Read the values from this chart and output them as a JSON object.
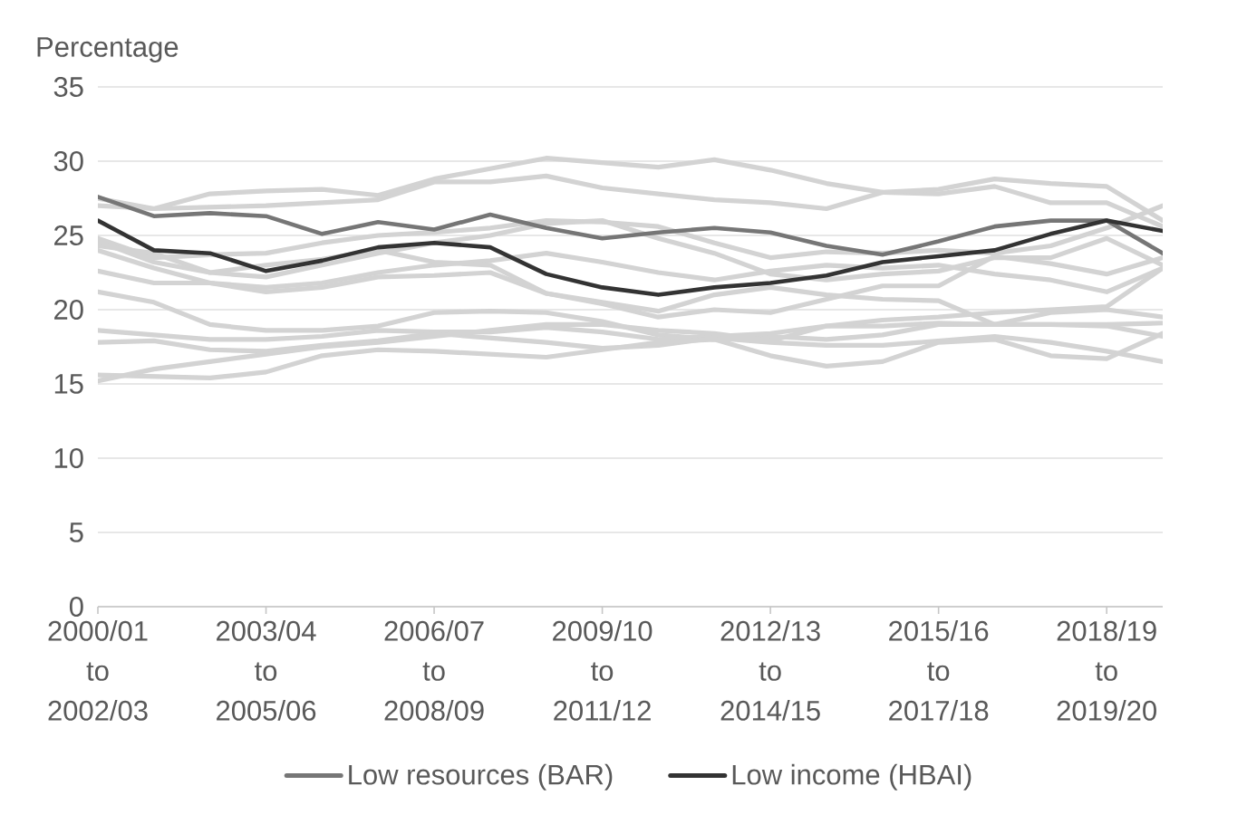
{
  "chart_data": {
    "type": "line",
    "ylabel": "Percentage",
    "categories": [
      "2000/01 to 2002/03",
      null,
      null,
      "2003/04 to 2005/06",
      null,
      null,
      "2006/07 to 2008/09",
      null,
      null,
      "2009/10 to 2011/12",
      null,
      null,
      "2012/13 to 2014/15",
      null,
      null,
      "2015/16 to 2017/18",
      null,
      null,
      "2018/19 to 2019/20",
      null
    ],
    "ylim": [
      0,
      35
    ],
    "yticks": [
      0,
      5,
      10,
      15,
      20,
      25,
      30,
      35
    ],
    "grid": "y",
    "legend": "bottom",
    "marker": "none",
    "line_style": "solid",
    "series": [
      {
        "color": "#d3d3d3",
        "values": [
          27.5,
          26.8,
          27.8,
          28.0,
          28.1,
          27.7,
          28.8,
          29.5,
          30.2,
          29.9,
          29.6,
          30.1,
          29.4,
          28.5,
          27.9,
          27.8,
          28.3,
          27.2,
          27.2,
          25.6
        ]
      },
      {
        "color": "#d3d3d3",
        "values": [
          27.0,
          26.8,
          26.9,
          27.0,
          27.2,
          27.4,
          28.6,
          28.6,
          29.0,
          28.2,
          27.8,
          27.4,
          27.2,
          26.8,
          27.9,
          28.1,
          28.8,
          28.5,
          28.3,
          26.0
        ]
      },
      {
        "color": "#d3d3d3",
        "values": [
          24.8,
          23.5,
          23.7,
          23.8,
          24.5,
          25.0,
          25.2,
          25.5,
          26.0,
          25.9,
          25.6,
          24.5,
          23.5,
          23.9,
          23.8,
          24.0,
          23.8,
          24.3,
          25.5,
          27.0
        ]
      },
      {
        "color": "#d3d3d3",
        "values": [
          24.3,
          23.8,
          22.5,
          22.2,
          23.0,
          23.8,
          24.5,
          25.0,
          25.8,
          26.0,
          24.8,
          23.8,
          22.4,
          22.0,
          22.4,
          22.6,
          23.5,
          23.5,
          24.8,
          23.0
        ]
      },
      {
        "color": "#d3d3d3",
        "values": [
          24.0,
          22.8,
          21.8,
          21.5,
          21.8,
          22.5,
          23.0,
          23.3,
          23.8,
          23.2,
          22.5,
          22.0,
          22.6,
          23.0,
          22.8,
          23.0,
          22.4,
          22.0,
          21.2,
          22.8
        ]
      },
      {
        "color": "#d3d3d3",
        "values": [
          22.6,
          21.8,
          21.8,
          21.2,
          21.5,
          22.2,
          22.3,
          22.5,
          21.1,
          20.4,
          19.5,
          20.0,
          19.8,
          20.7,
          21.6,
          21.6,
          23.6,
          23.1,
          22.4,
          23.5
        ]
      },
      {
        "color": "#d3d3d3",
        "values": [
          24.6,
          23.2,
          22.5,
          23.0,
          23.4,
          24.0,
          23.2,
          23.0,
          21.1,
          20.5,
          19.9,
          21.0,
          21.5,
          21.0,
          20.7,
          20.6,
          19.0,
          19.0,
          18.9,
          18.2
        ]
      },
      {
        "color": "#d3d3d3",
        "values": [
          21.2,
          20.5,
          19.0,
          18.6,
          18.6,
          18.9,
          19.8,
          19.9,
          19.8,
          19.2,
          18.3,
          18.0,
          18.2,
          18.0,
          18.3,
          19.0,
          19.0,
          19.8,
          20.0,
          19.5
        ]
      },
      {
        "color": "#d3d3d3",
        "values": [
          18.6,
          18.3,
          18.0,
          18.0,
          18.2,
          18.6,
          18.5,
          18.5,
          18.8,
          18.5,
          18.0,
          18.2,
          18.4,
          18.9,
          18.9,
          19.1,
          19.0,
          19.0,
          19.0,
          19.1
        ]
      },
      {
        "color": "#d3d3d3",
        "values": [
          17.8,
          17.9,
          17.3,
          17.2,
          17.6,
          17.9,
          18.4,
          18.1,
          17.8,
          17.4,
          17.6,
          18.1,
          17.8,
          17.6,
          17.6,
          17.9,
          18.2,
          17.8,
          17.2,
          16.5
        ]
      },
      {
        "color": "#d3d3d3",
        "values": [
          15.6,
          15.5,
          15.4,
          15.8,
          16.9,
          17.3,
          17.2,
          17.0,
          16.8,
          17.3,
          17.8,
          18.0,
          16.9,
          16.2,
          16.5,
          17.8,
          18.0,
          16.9,
          16.7,
          18.4
        ]
      },
      {
        "color": "#d3d3d3",
        "values": [
          15.2,
          16.0,
          16.5,
          17.0,
          17.5,
          17.8,
          18.2,
          18.6,
          19.0,
          19.0,
          18.6,
          18.4,
          17.9,
          18.9,
          19.3,
          19.5,
          19.8,
          20.0,
          20.2,
          22.8
        ]
      },
      {
        "name": "Low resources (BAR)",
        "color": "#767676",
        "values": [
          27.6,
          26.3,
          26.5,
          26.3,
          25.1,
          25.9,
          25.4,
          26.4,
          25.5,
          24.8,
          25.2,
          25.5,
          25.2,
          24.3,
          23.7,
          24.6,
          25.6,
          26.0,
          26.0,
          23.8
        ]
      },
      {
        "name": "Low income (HBAI)",
        "color": "#333333",
        "values": [
          26.0,
          24.0,
          23.8,
          22.6,
          23.3,
          24.2,
          24.5,
          24.2,
          22.4,
          21.5,
          21.0,
          21.5,
          21.8,
          22.3,
          23.2,
          23.6,
          24.0,
          25.1,
          26.0,
          25.3
        ]
      }
    ]
  }
}
